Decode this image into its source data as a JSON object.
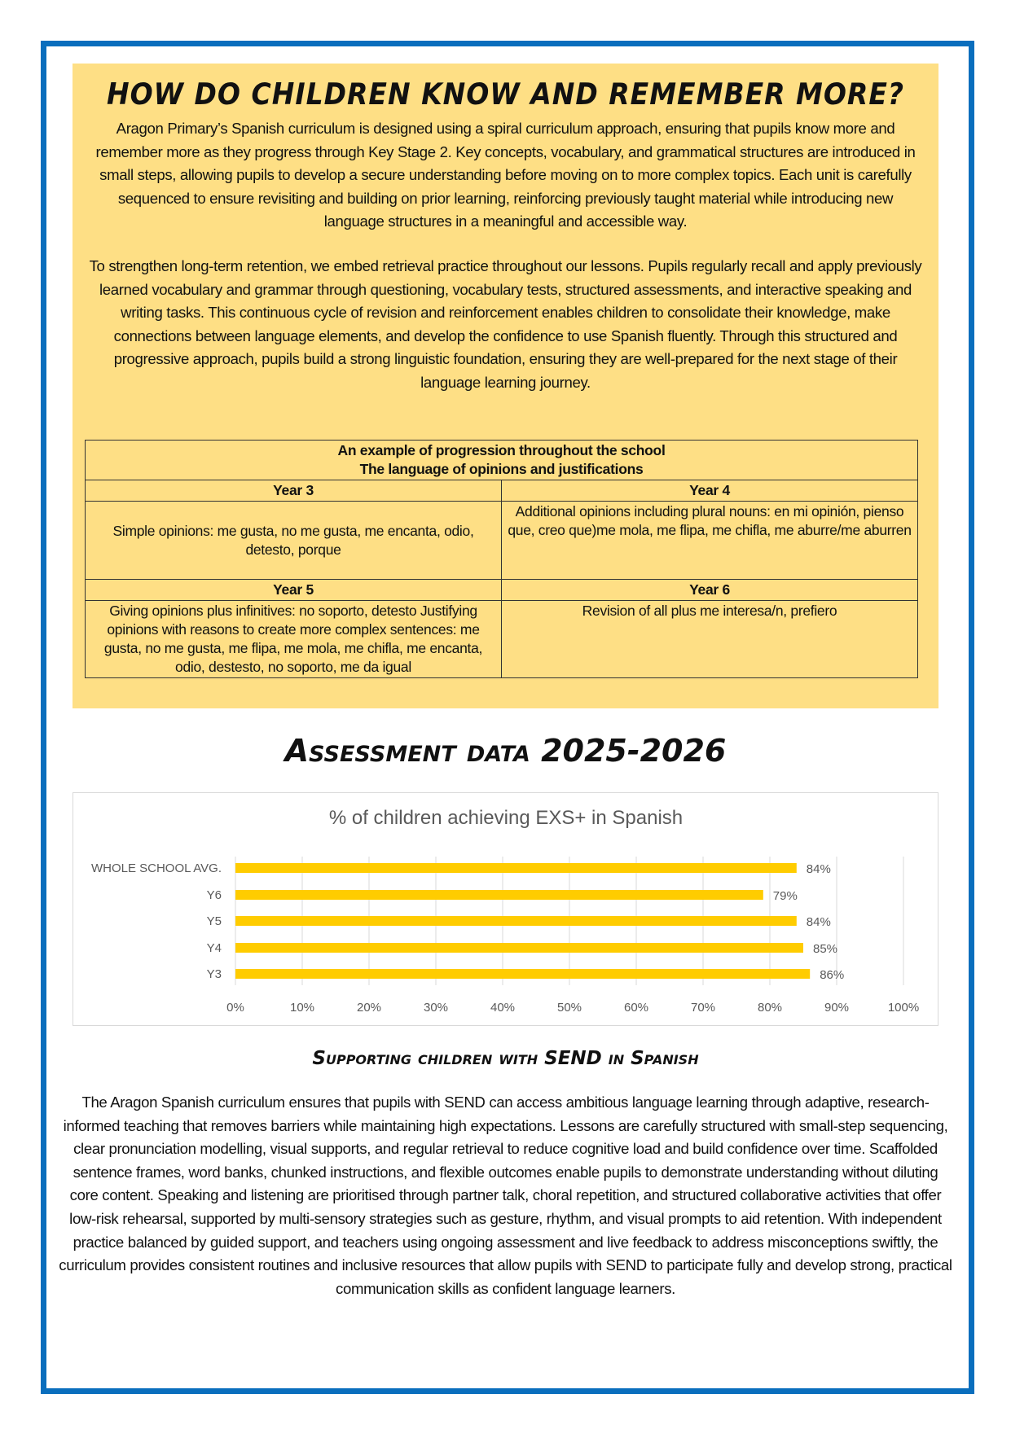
{
  "colors": {
    "border": "#0a6ebd",
    "panel": "#fedf85",
    "bar": "#ffcc00"
  },
  "section1": {
    "title": "How do children know and remember more?",
    "paragraphs": [
      "Aragon Primary’s Spanish curriculum is designed using a spiral curriculum approach, ensuring that pupils know more and remember more as they progress through Key Stage 2. Key concepts, vocabulary, and grammatical structures are introduced in small steps, allowing pupils to develop a secure understanding before moving on to more complex topics. Each unit is carefully sequenced to ensure revisiting and building on prior learning, reinforcing previously taught material while introducing new language structures in a meaningful and accessible way.",
      "To strengthen long-term retention, we embed retrieval practice throughout our lessons. Pupils regularly recall and apply previously learned vocabulary and grammar through questioning, vocabulary tests, structured assessments, and interactive speaking and writing tasks. This continuous cycle of revision and reinforcement enables children to consolidate their knowledge, make connections between language elements, and develop the confidence to use Spanish fluently. Through this structured and progressive approach, pupils build a strong linguistic foundation, ensuring they are well-prepared for the next stage of their language learning journey."
    ],
    "table": {
      "title_line1": "An example of progression throughout the school",
      "title_line2": "The language of opinions and justifications",
      "cells": [
        {
          "year": "Year 3",
          "text": "Simple opinions: me gusta, no me gusta, me encanta, odio, detesto, porque"
        },
        {
          "year": "Year 4",
          "text": "Additional opinions including plural nouns: en mi opinión, pienso que, creo que)me mola, me flipa, me chifla, me aburre/me aburren"
        },
        {
          "year": "Year 5",
          "text": "Giving opinions plus infinitives: no soporto, detesto Justifying opinions with reasons to create more complex sentences: me gusta, no me gusta, me flipa, me mola, me chifla, me encanta, odio, destesto, no soporto, me da igual"
        },
        {
          "year": "Year 6",
          "text": "Revision of all plus me interesa/n, prefiero"
        }
      ]
    }
  },
  "assessment_heading": "Assessment data 2025-2026",
  "chart_data": {
    "type": "bar",
    "orientation": "horizontal",
    "title": "% of children achieving EXS+ in Spanish",
    "categories": [
      "WHOLE SCHOOL AVG.",
      "Y6",
      "Y5",
      "Y4",
      "Y3"
    ],
    "values": [
      84,
      79,
      84,
      85,
      86
    ],
    "data_labels": [
      "84%",
      "79%",
      "84%",
      "85%",
      "86%"
    ],
    "xlim": [
      0,
      100
    ],
    "x_ticks": [
      "0%",
      "10%",
      "20%",
      "30%",
      "40%",
      "50%",
      "60%",
      "70%",
      "80%",
      "90%",
      "100%"
    ],
    "grid": true,
    "legend": "none"
  },
  "send": {
    "heading": "Supporting children with SEND in Spanish",
    "text": "The Aragon Spanish curriculum ensures that pupils with SEND can access ambitious language learning through adaptive, research-informed teaching that removes barriers while maintaining high expectations. Lessons are carefully structured with small-step sequencing, clear pronunciation modelling, visual supports, and regular retrieval to reduce cognitive load and build confidence over time. Scaffolded sentence frames, word banks, chunked instructions, and flexible outcomes enable pupils to demonstrate understanding without diluting core content. Speaking and listening are prioritised through partner talk, choral repetition, and structured collaborative activities that offer low-risk rehearsal, supported by multi-sensory strategies such as gesture, rhythm, and visual prompts to aid retention. With independent practice balanced by guided support, and teachers using ongoing assessment and live feedback to address misconceptions swiftly, the curriculum provides consistent routines and inclusive resources that allow pupils with SEND to participate fully and develop strong, practical communication skills as confident language learners."
  }
}
